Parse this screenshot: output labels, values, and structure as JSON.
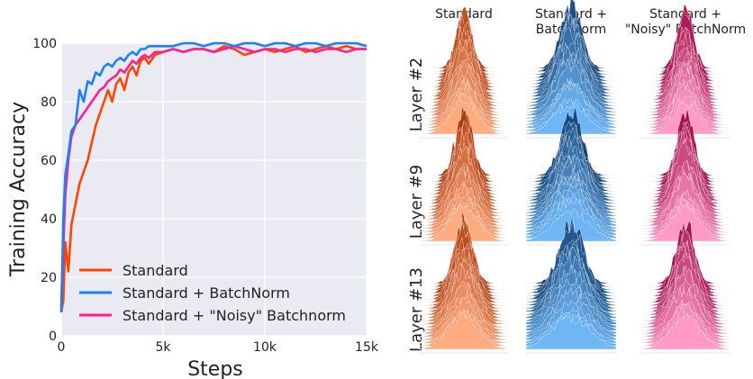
{
  "chart_data": [
    {
      "type": "line",
      "xlabel": "Steps",
      "ylabel": "Training Accuracy",
      "xlim": [
        0,
        15000
      ],
      "ylim": [
        0,
        100
      ],
      "x_ticks": [
        {
          "value": 0,
          "label": "0"
        },
        {
          "value": 5000,
          "label": "5k"
        },
        {
          "value": 10000,
          "label": "10k"
        },
        {
          "value": 15000,
          "label": "15k"
        }
      ],
      "y_ticks": [
        {
          "value": 0,
          "label": "0"
        },
        {
          "value": 20,
          "label": "20"
        },
        {
          "value": 40,
          "label": "40"
        },
        {
          "value": 60,
          "label": "60"
        },
        {
          "value": 80,
          "label": "80"
        },
        {
          "value": 100,
          "label": "100"
        }
      ],
      "grid": true,
      "legend_position": "bottom-left",
      "series": [
        {
          "name": "Standard",
          "color": "#ff4400",
          "points": [
            [
              0,
              8
            ],
            [
              100,
              12
            ],
            [
              200,
              32
            ],
            [
              350,
              22
            ],
            [
              500,
              38
            ],
            [
              700,
              45
            ],
            [
              900,
              52
            ],
            [
              1100,
              56
            ],
            [
              1300,
              60
            ],
            [
              1500,
              66
            ],
            [
              1700,
              72
            ],
            [
              1900,
              76
            ],
            [
              2100,
              80
            ],
            [
              2300,
              84
            ],
            [
              2500,
              80
            ],
            [
              2700,
              86
            ],
            [
              2900,
              88
            ],
            [
              3100,
              84
            ],
            [
              3300,
              90
            ],
            [
              3500,
              92
            ],
            [
              3700,
              89
            ],
            [
              3900,
              94
            ],
            [
              4100,
              95
            ],
            [
              4300,
              93
            ],
            [
              4600,
              96
            ],
            [
              5000,
              97
            ],
            [
              5500,
              98
            ],
            [
              6000,
              97
            ],
            [
              6500,
              98
            ],
            [
              7000,
              98
            ],
            [
              7500,
              97
            ],
            [
              8000,
              99
            ],
            [
              8500,
              98
            ],
            [
              9000,
              96
            ],
            [
              9500,
              97
            ],
            [
              10000,
              98
            ],
            [
              10500,
              97
            ],
            [
              11000,
              98
            ],
            [
              11500,
              99
            ],
            [
              12000,
              97
            ],
            [
              12500,
              98
            ],
            [
              13000,
              99
            ],
            [
              13500,
              98
            ],
            [
              14000,
              99
            ],
            [
              14500,
              98
            ],
            [
              15000,
              98
            ]
          ]
        },
        {
          "name": "Standard + BatchNorm",
          "color": "#1a80ff",
          "points": [
            [
              0,
              8
            ],
            [
              100,
              40
            ],
            [
              200,
              55
            ],
            [
              350,
              62
            ],
            [
              500,
              70
            ],
            [
              700,
              72
            ],
            [
              900,
              84
            ],
            [
              1100,
              80
            ],
            [
              1300,
              87
            ],
            [
              1500,
              86
            ],
            [
              1700,
              90
            ],
            [
              1900,
              89
            ],
            [
              2100,
              92
            ],
            [
              2300,
              93
            ],
            [
              2500,
              92
            ],
            [
              2700,
              94
            ],
            [
              2900,
              95
            ],
            [
              3100,
              94
            ],
            [
              3300,
              96
            ],
            [
              3500,
              97
            ],
            [
              3700,
              96
            ],
            [
              3900,
              98
            ],
            [
              4100,
              98
            ],
            [
              4300,
              99
            ],
            [
              4600,
              99
            ],
            [
              5000,
              99
            ],
            [
              5500,
              99
            ],
            [
              6000,
              100
            ],
            [
              6500,
              100
            ],
            [
              7000,
              99
            ],
            [
              7500,
              100
            ],
            [
              8000,
              100
            ],
            [
              8500,
              99
            ],
            [
              9000,
              100
            ],
            [
              9500,
              100
            ],
            [
              10000,
              99
            ],
            [
              10500,
              100
            ],
            [
              11000,
              100
            ],
            [
              11500,
              99
            ],
            [
              12000,
              100
            ],
            [
              12500,
              100
            ],
            [
              13000,
              99
            ],
            [
              13500,
              100
            ],
            [
              14000,
              100
            ],
            [
              14500,
              100
            ],
            [
              15000,
              99
            ]
          ]
        },
        {
          "name": "Standard + \"Noisy\" Batchnorm",
          "color": "#ff1f8f",
          "points": [
            [
              0,
              10
            ],
            [
              100,
              30
            ],
            [
              200,
              48
            ],
            [
              350,
              60
            ],
            [
              500,
              68
            ],
            [
              700,
              72
            ],
            [
              900,
              74
            ],
            [
              1100,
              76
            ],
            [
              1300,
              78
            ],
            [
              1500,
              80
            ],
            [
              1700,
              82
            ],
            [
              1900,
              84
            ],
            [
              2100,
              85
            ],
            [
              2300,
              87
            ],
            [
              2500,
              88
            ],
            [
              2700,
              89
            ],
            [
              2900,
              91
            ],
            [
              3100,
              90
            ],
            [
              3300,
              92
            ],
            [
              3500,
              94
            ],
            [
              3700,
              93
            ],
            [
              3900,
              95
            ],
            [
              4100,
              96
            ],
            [
              4300,
              95
            ],
            [
              4600,
              97
            ],
            [
              5000,
              97
            ],
            [
              5500,
              98
            ],
            [
              6000,
              97
            ],
            [
              6500,
              98
            ],
            [
              7000,
              98
            ],
            [
              7500,
              97
            ],
            [
              8000,
              98
            ],
            [
              8500,
              99
            ],
            [
              9000,
              98
            ],
            [
              9500,
              97
            ],
            [
              10000,
              98
            ],
            [
              10500,
              98
            ],
            [
              11000,
              97
            ],
            [
              11500,
              98
            ],
            [
              12000,
              98
            ],
            [
              12500,
              97
            ],
            [
              13000,
              98
            ],
            [
              13500,
              98
            ],
            [
              14000,
              97
            ],
            [
              14500,
              98
            ],
            [
              15000,
              98
            ]
          ]
        }
      ]
    },
    {
      "type": "other",
      "column_titles": [
        "Standard",
        "Standard +\nBatchNorm",
        "Standard +\n\"Noisy\" BatchNorm"
      ],
      "row_labels": [
        "Layer #2",
        "Layer #9",
        "Layer #13"
      ],
      "palettes": [
        {
          "light": "#ffab80",
          "dark": "#a82f00",
          "mid": "#ff7a3d"
        },
        {
          "light": "#6fb6f5",
          "dark": "#0a3a6e",
          "mid": "#2f80c9"
        },
        {
          "light": "#ff9ac4",
          "dark": "#9a0040",
          "mid": "#ff4f95"
        }
      ]
    }
  ]
}
